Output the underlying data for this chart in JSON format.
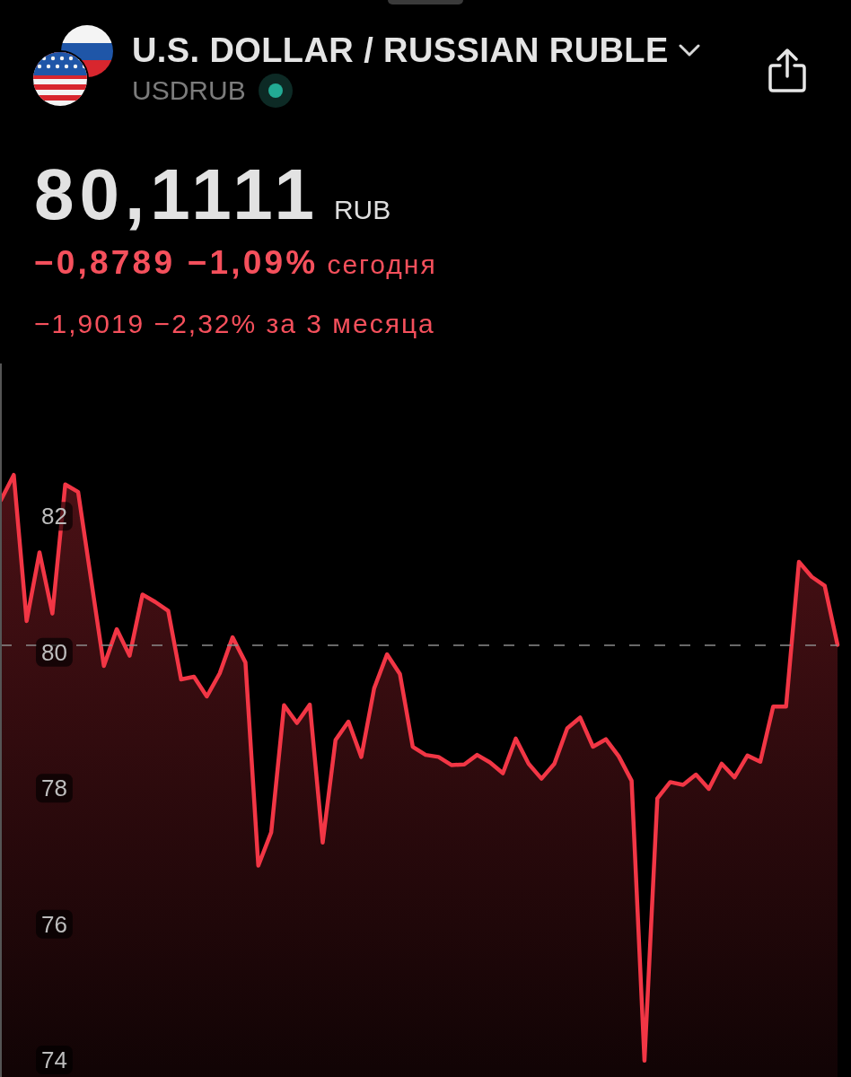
{
  "chart_data": {
    "type": "area",
    "title": "U.S. DOLLAR / RUSSIAN RUBLE",
    "subtitle": "USDRUB",
    "annotations": [
      "80,1111",
      "RUB",
      "−0,8789 −1,09%",
      "сегодня",
      "−1,9019 −2,32% за 3 месяца"
    ],
    "categories": [
      null,
      null,
      null,
      null,
      null,
      null,
      null,
      null,
      null,
      null,
      null,
      null,
      null,
      null,
      null,
      null,
      null,
      null,
      null,
      null,
      null,
      null,
      null,
      null,
      null,
      null,
      null,
      null,
      null,
      null,
      null,
      null,
      null,
      null,
      null,
      null,
      null,
      null,
      null,
      null,
      null,
      null,
      null,
      null,
      null,
      null,
      null,
      null,
      null,
      null,
      null,
      null,
      null,
      null,
      null,
      null,
      null,
      null,
      null,
      null,
      null,
      null,
      null,
      null,
      null,
      null
    ],
    "series": [
      {
        "color": "#f23645",
        "values": [
          82.24,
          82.61,
          80.46,
          81.47,
          80.57,
          82.47,
          82.36,
          81.08,
          79.8,
          80.34,
          79.95,
          80.85,
          80.74,
          80.61,
          79.6,
          79.64,
          79.35,
          79.69,
          80.22,
          79.85,
          76.86,
          77.35,
          79.22,
          78.96,
          79.23,
          77.2,
          78.71,
          78.98,
          78.46,
          79.47,
          79.97,
          79.68,
          78.61,
          78.49,
          78.46,
          78.34,
          78.35,
          78.49,
          78.38,
          78.22,
          78.73,
          78.36,
          78.14,
          78.36,
          78.88,
          79.04,
          78.61,
          78.72,
          78.47,
          78.11,
          73.99,
          77.85,
          78.09,
          78.05,
          78.2,
          77.99,
          78.36,
          78.16,
          78.48,
          78.39,
          79.2,
          79.2,
          81.33,
          81.11,
          80.98,
          80.11
        ]
      }
    ],
    "ylim": [
      73.75,
      84.25
    ],
    "yticks": [
      74,
      76,
      78,
      80,
      82
    ],
    "tick_labels": "y",
    "marker": "none",
    "line_style": "solid",
    "ref_lines": [
      {
        "axis": "y",
        "value": 80.1111,
        "color": "#8c8c8c",
        "line_style": "dashed"
      }
    ]
  }
}
